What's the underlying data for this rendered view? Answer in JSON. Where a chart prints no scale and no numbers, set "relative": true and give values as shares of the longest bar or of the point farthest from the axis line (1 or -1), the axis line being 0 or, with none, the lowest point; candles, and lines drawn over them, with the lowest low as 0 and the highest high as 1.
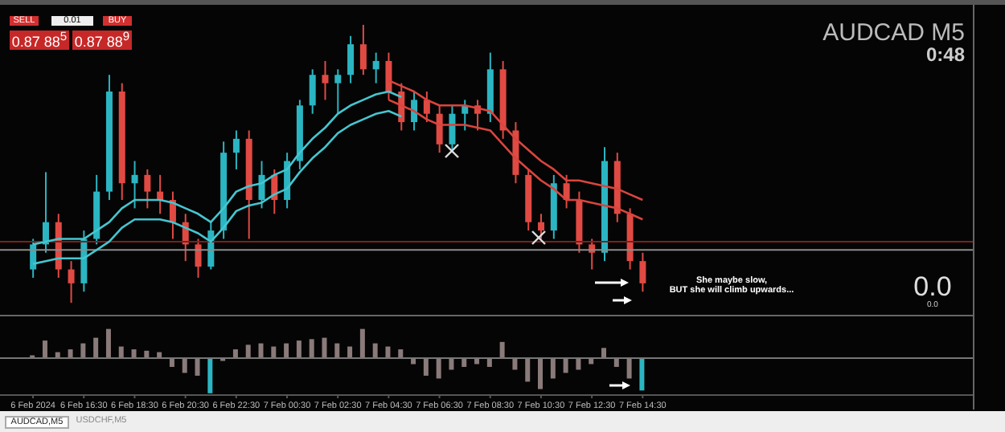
{
  "chart_data": [
    {
      "type": "candlestick",
      "relative": true,
      "tick_labels": false,
      "categories": [
        null,
        null,
        null,
        null,
        null,
        null,
        null,
        null,
        null,
        null,
        null,
        null,
        null,
        null,
        null,
        null,
        null,
        null,
        null,
        null,
        null,
        null,
        null,
        null,
        null,
        null,
        null,
        null,
        null,
        null,
        null,
        null,
        null,
        null,
        null,
        null,
        null,
        null,
        null,
        null,
        null,
        null,
        null,
        null,
        null,
        null,
        null,
        null,
        null
      ],
      "ohlc": [
        [
          0.12,
          0.23,
          0.09,
          0.21
        ],
        [
          0.21,
          0.47,
          0.18,
          0.29
        ],
        [
          0.29,
          0.32,
          0.09,
          0.12
        ],
        [
          0.12,
          0.15,
          0,
          0.07
        ],
        [
          0.07,
          0.26,
          0.04,
          0.23
        ],
        [
          0.23,
          0.46,
          0.21,
          0.4
        ],
        [
          0.4,
          0.82,
          0.37,
          0.76
        ],
        [
          0.76,
          0.79,
          0.37,
          0.43
        ],
        [
          0.43,
          0.51,
          0.34,
          0.46
        ],
        [
          0.46,
          0.48,
          0.34,
          0.4
        ],
        [
          0.4,
          0.46,
          0.32,
          0.37
        ],
        [
          0.37,
          0.4,
          0.23,
          0.29
        ],
        [
          0.29,
          0.32,
          0.15,
          0.21
        ],
        [
          0.21,
          0.23,
          0.09,
          0.13
        ],
        [
          0.13,
          0.29,
          0.12,
          0.26
        ],
        [
          0.26,
          0.58,
          0.23,
          0.54
        ],
        [
          0.54,
          0.62,
          0.48,
          0.59
        ],
        [
          0.59,
          0.62,
          0.23,
          0.37
        ],
        [
          0.37,
          0.51,
          0.34,
          0.46
        ],
        [
          0.46,
          0.48,
          0.32,
          0.37
        ],
        [
          0.37,
          0.54,
          0.34,
          0.51
        ],
        [
          0.51,
          0.73,
          0.48,
          0.71
        ],
        [
          0.71,
          0.84,
          0.68,
          0.82
        ],
        [
          0.82,
          0.87,
          0.73,
          0.79
        ],
        [
          0.79,
          0.84,
          0.68,
          0.82
        ],
        [
          0.82,
          0.96,
          0.79,
          0.93
        ],
        [
          0.93,
          1.0,
          0.82,
          0.84
        ],
        [
          0.84,
          0.9,
          0.79,
          0.87
        ],
        [
          0.87,
          0.9,
          0.73,
          0.76
        ],
        [
          0.76,
          0.79,
          0.62,
          0.65
        ],
        [
          0.65,
          0.76,
          0.62,
          0.73
        ],
        [
          0.73,
          0.76,
          0.65,
          0.68
        ],
        [
          0.68,
          0.71,
          0.54,
          0.57
        ],
        [
          0.57,
          0.71,
          0.54,
          0.68
        ],
        [
          0.68,
          0.73,
          0.62,
          0.71
        ],
        [
          0.71,
          0.73,
          0.62,
          0.68
        ],
        [
          0.68,
          0.9,
          0.65,
          0.84
        ],
        [
          0.84,
          0.87,
          0.59,
          0.62
        ],
        [
          0.62,
          0.65,
          0.43,
          0.46
        ],
        [
          0.46,
          0.48,
          0.26,
          0.29
        ],
        [
          0.29,
          0.32,
          0.23,
          0.26
        ],
        [
          0.26,
          0.46,
          0.23,
          0.43
        ],
        [
          0.43,
          0.46,
          0.34,
          0.37
        ],
        [
          0.37,
          0.4,
          0.18,
          0.21
        ],
        [
          0.21,
          0.23,
          0.12,
          0.18
        ],
        [
          0.18,
          0.56,
          0.15,
          0.51
        ],
        [
          0.51,
          0.54,
          0.29,
          0.32
        ],
        [
          0.32,
          0.34,
          0.12,
          0.15
        ],
        [
          0.15,
          0.18,
          0.04,
          0.07
        ]
      ],
      "colors": [
        "#2bb5c2",
        "#2bb5c2",
        "#e04a43",
        "#e04a43",
        "#2bb5c2",
        "#2bb5c2",
        "#2bb5c2",
        "#e04a43",
        "#2bb5c2",
        "#e04a43",
        "#e04a43",
        "#e04a43",
        "#e04a43",
        "#e04a43",
        "#2bb5c2",
        "#2bb5c2",
        "#2bb5c2",
        "#e04a43",
        "#2bb5c2",
        "#e04a43",
        "#2bb5c2",
        "#2bb5c2",
        "#2bb5c2",
        "#e04a43",
        "#2bb5c2",
        "#2bb5c2",
        "#e04a43",
        "#2bb5c2",
        "#e04a43",
        "#e04a43",
        "#2bb5c2",
        "#e04a43",
        "#e04a43",
        "#2bb5c2",
        "#2bb5c2",
        "#e04a43",
        "#2bb5c2",
        "#e04a43",
        "#e04a43",
        "#e04a43",
        "#e04a43",
        "#2bb5c2",
        "#e04a43",
        "#e04a43",
        "#e04a43",
        "#2bb5c2",
        "#e04a43",
        "#e04a43",
        "#e04a43"
      ],
      "series": [
        {
          "type": "line",
          "color": "#45c6cf",
          "values": [
            0.21,
            0.22,
            0.23,
            0.23,
            0.23,
            0.26,
            0.29,
            0.34,
            0.37,
            0.37,
            0.37,
            0.36,
            0.34,
            0.32,
            0.29,
            0.34,
            0.4,
            0.42,
            0.43,
            0.46,
            0.48,
            0.54,
            0.59,
            0.63,
            0.68,
            0.71,
            0.73,
            0.75,
            0.76,
            0.74,
            null,
            null,
            null,
            null,
            null,
            null,
            null,
            null,
            null,
            null,
            null,
            null,
            null,
            null,
            null,
            null,
            null,
            null,
            null
          ]
        },
        {
          "type": "line",
          "color": "#45c6cf",
          "values": [
            0.14,
            0.15,
            0.16,
            0.16,
            0.16,
            0.19,
            0.22,
            0.27,
            0.3,
            0.3,
            0.3,
            0.29,
            0.27,
            0.25,
            0.22,
            0.27,
            0.33,
            0.35,
            0.36,
            0.39,
            0.41,
            0.47,
            0.52,
            0.56,
            0.61,
            0.64,
            0.66,
            0.68,
            0.69,
            0.67,
            null,
            null,
            null,
            null,
            null,
            null,
            null,
            null,
            null,
            null,
            null,
            null,
            null,
            null,
            null,
            null,
            null,
            null,
            null
          ]
        },
        {
          "type": "line",
          "color": "#d9453e",
          "values": [
            null,
            null,
            null,
            null,
            null,
            null,
            null,
            null,
            null,
            null,
            null,
            null,
            null,
            null,
            null,
            null,
            null,
            null,
            null,
            null,
            null,
            null,
            null,
            null,
            null,
            null,
            null,
            null,
            0.8,
            0.78,
            0.76,
            0.73,
            0.71,
            0.71,
            0.71,
            0.7,
            0.69,
            0.64,
            0.59,
            0.55,
            0.51,
            0.48,
            0.44,
            0.44,
            0.43,
            0.42,
            0.41,
            0.39,
            0.37
          ]
        },
        {
          "type": "line",
          "color": "#d9453e",
          "values": [
            null,
            null,
            null,
            null,
            null,
            null,
            null,
            null,
            null,
            null,
            null,
            null,
            null,
            null,
            null,
            null,
            null,
            null,
            null,
            null,
            null,
            null,
            null,
            null,
            null,
            null,
            null,
            null,
            0.73,
            0.71,
            0.69,
            0.66,
            0.64,
            0.64,
            0.64,
            0.63,
            0.62,
            0.57,
            0.52,
            0.48,
            0.44,
            0.41,
            0.37,
            0.37,
            0.36,
            0.35,
            0.34,
            0.32,
            0.3
          ]
        }
      ],
      "ref_lines": [
        {
          "axis": "y",
          "value": 0.19,
          "color": "#8c8c8c"
        },
        {
          "axis": "y",
          "value": 0.22,
          "color": "#7a2020"
        }
      ],
      "annotations": [
        "SELL",
        "0.01",
        "BUY",
        "0.87 88$^{5}$",
        "0.87 88$^{9}$",
        "She maybe slow,\nBUT she will climb upwards...",
        "0.0",
        "0.0",
        "AUDCAD M5",
        "0:48"
      ]
    },
    {
      "type": "bar",
      "relative": true,
      "tick_labels": "x",
      "annotations": [
        "AUDCAD,M5",
        "USDCHF,M5"
      ],
      "categories": [
        "6 Feb 2024",
        null,
        null,
        null,
        "6 Feb 16:30",
        null,
        null,
        null,
        "6 Feb 18:30",
        null,
        null,
        null,
        "6 Feb 20:30",
        null,
        null,
        null,
        "6 Feb 22:30",
        null,
        null,
        null,
        "7 Feb 00:30",
        null,
        null,
        null,
        "7 Feb 02:30",
        null,
        null,
        null,
        "7 Feb 04:30",
        null,
        null,
        null,
        "7 Feb 06:30",
        null,
        null,
        null,
        "7 Feb 08:30",
        null,
        null,
        null,
        "7 Feb 10:30",
        null,
        null,
        null,
        "7 Feb 12:30",
        null,
        null,
        null,
        "7 Feb 14:30"
      ],
      "values": [
        0.08,
        0.5,
        0.17,
        0.25,
        0.42,
        0.58,
        0.83,
        0.33,
        0.25,
        0.21,
        0.17,
        -0.25,
        -0.42,
        -0.5,
        -1,
        -0.08,
        0.25,
        0.38,
        0.42,
        0.33,
        0.42,
        0.5,
        0.54,
        0.58,
        0.42,
        0.33,
        0.83,
        0.42,
        0.33,
        0.25,
        -0.17,
        -0.5,
        -0.58,
        -0.33,
        -0.25,
        -0.17,
        -0.25,
        0.46,
        -0.33,
        -0.67,
        -0.88,
        -0.58,
        -0.42,
        -0.33,
        -0.17,
        0.29,
        -0.25,
        -0.58,
        -0.92
      ],
      "colors": [
        "#8a7a7a",
        "#8a7a7a",
        "#8a7a7a",
        "#8a7a7a",
        "#8a7a7a",
        "#8a7a7a",
        "#8a7a7a",
        "#8a7a7a",
        "#8a7a7a",
        "#8a7a7a",
        "#8a7a7a",
        "#8a7a7a",
        "#8a7a7a",
        "#8a7a7a",
        "#2bb5c2",
        "#8a7a7a",
        "#8a7a7a",
        "#8a7a7a",
        "#8a7a7a",
        "#8a7a7a",
        "#8a7a7a",
        "#8a7a7a",
        "#8a7a7a",
        "#8a7a7a",
        "#8a7a7a",
        "#8a7a7a",
        "#8a7a7a",
        "#8a7a7a",
        "#8a7a7a",
        "#8a7a7a",
        "#8a7a7a",
        "#8a7a7a",
        "#8a7a7a",
        "#8a7a7a",
        "#8a7a7a",
        "#8a7a7a",
        "#8a7a7a",
        "#8a7a7a",
        "#8a7a7a",
        "#8a7a7a",
        "#8a7a7a",
        "#8a7a7a",
        "#8a7a7a",
        "#8a7a7a",
        "#8a7a7a",
        "#8a7a7a",
        "#8a7a7a",
        "#8a7a7a",
        "#2bb5c2"
      ]
    }
  ]
}
